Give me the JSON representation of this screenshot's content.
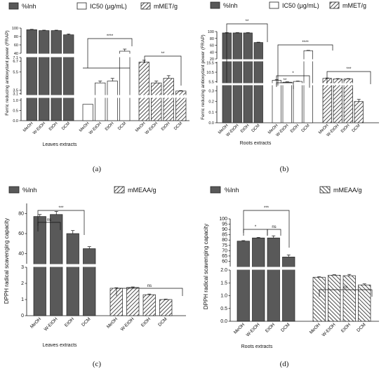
{
  "chart_data": [
    {
      "type": "bar",
      "panel": "(a)",
      "ylabel": "Ferric reducing antioxydant power (FRAP)",
      "xlabel": "Leaves extracts",
      "legend": [
        "%Inh",
        "IC50 (µg/mL)",
        "mMET/g"
      ],
      "categories": [
        "MeOH",
        "W-EtOH",
        "EtOH",
        "DCM"
      ],
      "broken_y_axis": true,
      "y_segments": [
        {
          "range": [
            0,
            1.1
          ],
          "ticks": [
            "0.0",
            "0.5",
            "1.0"
          ]
        },
        {
          "range": [
            3.0,
            7.1
          ],
          "ticks": [
            "3.1",
            "3.5",
            "5.5",
            "6.7",
            "7.1"
          ]
        },
        {
          "range": [
            40,
            100
          ],
          "ticks": [
            "40",
            "60",
            "80",
            "100"
          ]
        }
      ],
      "series": [
        {
          "name": "%Inh",
          "values": [
            96,
            94,
            94,
            84
          ],
          "errors": [
            1,
            1,
            1,
            2
          ]
        },
        {
          "name": "IC50 (µg/mL)",
          "values": [
            0.8,
            4.3,
            4.5,
            45
          ],
          "errors": [
            0,
            0.2,
            0.3,
            5
          ]
        },
        {
          "name": "mMET/g",
          "values": [
            6.6,
            4.3,
            4.8,
            3.4
          ],
          "errors": [
            0.2,
            0.2,
            0.3,
            0.05
          ]
        }
      ],
      "annotations": [
        "****",
        "**"
      ]
    },
    {
      "type": "bar",
      "panel": "(b)",
      "ylabel": "Ferric reducing antioxydant power (FRAP)",
      "xlabel": "Roots extracts",
      "legend": [
        "%Inh",
        "IC50 (µg/mL)",
        "mMET/g"
      ],
      "categories": [
        "MeOH",
        "W-EtOH",
        "EtOH",
        "DCM"
      ],
      "broken_y_axis": true,
      "y_segments": [
        {
          "range": [
            0,
            0.35
          ],
          "ticks": [
            "0.0",
            "0.1",
            "0.2",
            "0.3"
          ]
        },
        {
          "range": [
            5.0,
            16.0
          ],
          "ticks": [
            "5.5",
            "10.5",
            "15.5"
          ]
        },
        {
          "range": [
            20,
            100
          ],
          "ticks": [
            "20",
            "40",
            "60",
            "80",
            "100"
          ]
        }
      ],
      "series": [
        {
          "name": "%Inh",
          "values": [
            96,
            96,
            96,
            68
          ],
          "errors": [
            1,
            1,
            1,
            1
          ]
        },
        {
          "name": "IC50 (µg/mL)",
          "values": [
            6.3,
            5.3,
            5.7,
            44
          ],
          "errors": [
            0.3,
            0.2,
            0.2,
            1
          ]
        },
        {
          "name": "mMET/g",
          "values": [
            7.3,
            7.0,
            7.0,
            0.2
          ],
          "errors": [
            0.2,
            0.2,
            0.2,
            0.02
          ]
        }
      ],
      "annotations": [
        "**",
        "****",
        "*",
        "**",
        "***"
      ]
    },
    {
      "type": "bar",
      "panel": "(c)",
      "ylabel": "DPPH radical scavenging capacity",
      "xlabel": "Leaves extracts",
      "legend": [
        "%Inh",
        "mMEAA/g"
      ],
      "categories": [
        "MeOH",
        "W-EtOH",
        "EtOH",
        "DCM"
      ],
      "broken_y_axis": true,
      "y_segments": [
        {
          "range": [
            0,
            3
          ],
          "ticks": [
            "0",
            "1",
            "2",
            "3"
          ]
        },
        {
          "range": [
            30,
            90
          ],
          "ticks": [
            "40",
            "60",
            "80"
          ]
        }
      ],
      "series": [
        {
          "name": "%Inh",
          "values": [
            77,
            79,
            60,
            45
          ],
          "errors": [
            2,
            3,
            3,
            2
          ]
        },
        {
          "name": "mMEAA/g",
          "values": [
            1.7,
            1.75,
            1.3,
            1.0
          ],
          "errors": [
            0.03,
            0.03,
            0.04,
            0.03
          ]
        }
      ],
      "annotations": [
        "***",
        "ns",
        "ns"
      ]
    },
    {
      "type": "bar",
      "panel": "(d)",
      "ylabel": "DPPH radical scavenging capacity",
      "xlabel": "Roots extracts",
      "legend": [
        "%Inh",
        "mMEAA/g"
      ],
      "categories": [
        "MeOH",
        "W-EtOH",
        "EtOH",
        "DCM"
      ],
      "broken_y_axis": true,
      "y_segments": [
        {
          "range": [
            0,
            2.0
          ],
          "ticks": [
            "0.0",
            "0.5",
            "1.0",
            "1.5",
            "2.0"
          ]
        },
        {
          "range": [
            55,
            100
          ],
          "ticks": [
            "60",
            "65",
            "70",
            "75",
            "80",
            "85",
            "90",
            "95",
            "100"
          ]
        }
      ],
      "series": [
        {
          "name": "%Inh",
          "values": [
            79,
            82,
            82,
            64
          ],
          "errors": [
            0.5,
            0.5,
            2,
            2
          ]
        },
        {
          "name": "mMEAA/g",
          "values": [
            1.72,
            1.8,
            1.78,
            1.42
          ],
          "errors": [
            0.02,
            0.02,
            0.05,
            0.04
          ]
        }
      ],
      "annotations": [
        "***",
        "*",
        "ns",
        "ns"
      ]
    }
  ]
}
